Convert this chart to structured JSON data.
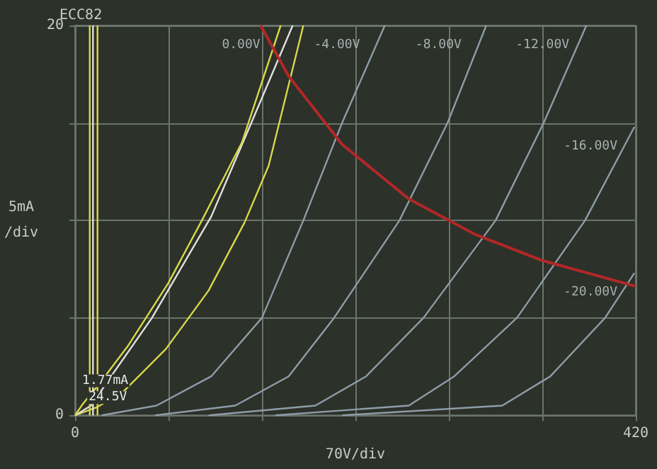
{
  "chart_data": {
    "type": "line",
    "title": "ECC82",
    "xlabel": "70V/div",
    "ylabel": "5mA\n/div",
    "xlim": [
      0,
      420
    ],
    "xticks": [
      0,
      {
        "value": 70,
        "label": null
      },
      {
        "value": 140,
        "label": null
      },
      {
        "value": 210,
        "label": null
      },
      {
        "value": 280,
        "label": null
      },
      {
        "value": 350,
        "label": null
      },
      420
    ],
    "ylim": [
      0,
      20
    ],
    "yticks": [
      0,
      {
        "value": 5,
        "label": null
      },
      {
        "value": 10,
        "label": null
      },
      {
        "value": 15,
        "label": null
      },
      20
    ],
    "grid": true,
    "legend": false,
    "marker": "none",
    "line_style": "solid",
    "series": [
      {
        "color": "#d8d84a",
        "x": [
          0,
          16,
          36,
          68,
          100,
          127,
          145,
          171
        ],
        "values": [
          0,
          0.4,
          1.2,
          3.4,
          6.4,
          9.9,
          12.8,
          20
        ]
      },
      {
        "name": "0.00V",
        "color": "#e0e0e0",
        "x": [
          0,
          12,
          27,
          57.6,
          102,
          132,
          163
        ],
        "values": [
          0,
          0.5,
          2,
          5,
          10.2,
          15,
          20
        ]
      },
      {
        "color": "#d8d84a",
        "x": [
          0,
          6,
          18,
          40,
          70,
          95,
          125,
          154
        ],
        "values": [
          0,
          0.6,
          1.6,
          3.6,
          6.8,
          10,
          14,
          20
        ]
      },
      {
        "name": "-4.00V",
        "color": "#8e9ca8",
        "x": [
          20,
          61,
          102,
          140,
          171,
          200,
          232
        ],
        "values": [
          0,
          0.5,
          2,
          5,
          10,
          15,
          20
        ]
      },
      {
        "name": "-8.00V",
        "color": "#8e9ca8",
        "x": [
          60,
          120,
          160,
          194,
          243,
          279,
          308
        ],
        "values": [
          0,
          0.5,
          2,
          5,
          10,
          15,
          20
        ]
      },
      {
        "name": "-12.00V",
        "color": "#8e9ca8",
        "x": [
          100,
          180,
          218,
          261,
          315,
          351,
          383
        ],
        "values": [
          0,
          0.5,
          2,
          5,
          10,
          15,
          20
        ]
      },
      {
        "name": "-16.00V",
        "color": "#8e9ca8",
        "x": [
          150,
          250,
          284,
          331,
          382,
          419
        ],
        "values": [
          0,
          0.5,
          2,
          5,
          10,
          14.8
        ]
      },
      {
        "name": "-20.00V",
        "color": "#8e9ca8",
        "x": [
          200,
          320,
          356,
          397,
          419
        ],
        "values": [
          0,
          0.5,
          2,
          5,
          7.3
        ]
      },
      {
        "color": "#b02828",
        "x": [
          139,
          160,
          200,
          250,
          300,
          350,
          420
        ],
        "values": [
          20,
          17.4,
          13.9,
          11.1,
          9.27,
          7.94,
          6.62
        ]
      },
      {
        "color": "#d8d84a",
        "x": [
          11,
          11
        ],
        "values": [
          0,
          20
        ]
      },
      {
        "color": "#e0e0e0",
        "x": [
          13.4,
          13.4
        ],
        "values": [
          0,
          20
        ]
      },
      {
        "color": "#d8d84a",
        "x": [
          16.8,
          16.8
        ],
        "values": [
          0,
          20
        ]
      }
    ],
    "annotations": [
      {
        "text": "1.77mA",
        "y": 1.77
      },
      {
        "text": "24.5V",
        "x": 24.5
      }
    ]
  }
}
